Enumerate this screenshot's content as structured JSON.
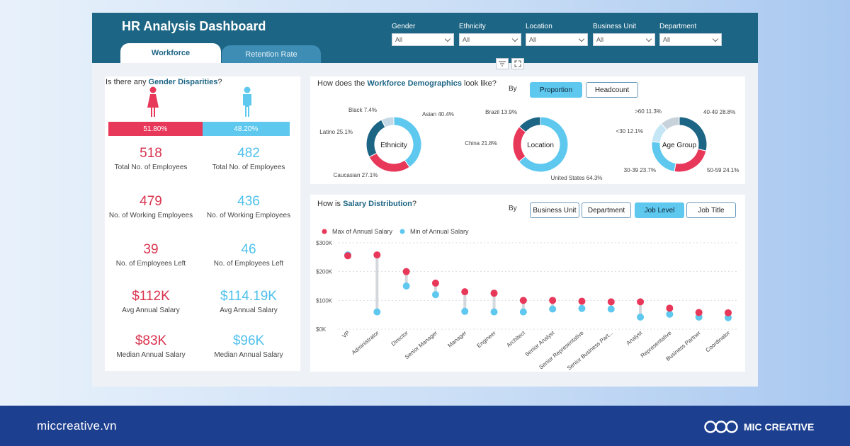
{
  "dashboard": {
    "title": "HR Analysis Dashboard",
    "tabs": [
      "Workforce",
      "Retention Rate"
    ],
    "filters": [
      {
        "label": "Gender",
        "value": "All"
      },
      {
        "label": "Ethnicity",
        "value": "All"
      },
      {
        "label": "Location",
        "value": "All"
      },
      {
        "label": "Business Unit",
        "value": "All"
      },
      {
        "label": "Department",
        "value": "All"
      }
    ]
  },
  "gender": {
    "question_prefix": "Is there any ",
    "question_bold": "Gender Disparities",
    "question_suffix": "?",
    "female_pct": "51.80%",
    "male_pct": "48.20%",
    "female_share": 51.8,
    "colors": {
      "female": "#e8385a",
      "male": "#5ec8ef"
    },
    "kpis": [
      {
        "female": "518",
        "male": "482",
        "label": "Total No. of Employees"
      },
      {
        "female": "479",
        "male": "436",
        "label": "No. of Working Employees"
      },
      {
        "female": "39",
        "male": "46",
        "label": "No. of Employees Left"
      },
      {
        "female": "$112K",
        "male": "$114.19K",
        "label": "Avg Annual Salary"
      },
      {
        "female": "$83K",
        "male": "$96K",
        "label": "Median Annual Salary"
      }
    ]
  },
  "demographics": {
    "question_prefix": "How does the ",
    "question_bold": "Workforce Demographics",
    "question_suffix": " look like?",
    "by_label": "By",
    "toggles": [
      "Proportion",
      "Headcount"
    ],
    "active_toggle": "Proportion",
    "donuts": [
      {
        "center": "Ethnicity",
        "segments": [
          {
            "label": "Asian 40.4%",
            "value": 40.4,
            "color": "#5ec8ef"
          },
          {
            "label": "Caucasian 27.1%",
            "value": 27.1,
            "color": "#e8385a"
          },
          {
            "label": "Latino 25.1%",
            "value": 25.1,
            "color": "#1d6584"
          },
          {
            "label": "Black 7.4%",
            "value": 7.4,
            "color": "#c5d9e6"
          }
        ]
      },
      {
        "center": "Location",
        "segments": [
          {
            "label": "United States 64.3%",
            "value": 64.3,
            "color": "#5ec8ef"
          },
          {
            "label": "China 21.8%",
            "value": 21.8,
            "color": "#e8385a"
          },
          {
            "label": "Brazil 13.9%",
            "value": 13.9,
            "color": "#1d6584"
          }
        ]
      },
      {
        "center": "Age Group",
        "segments": [
          {
            "label": "40-49 28.8%",
            "value": 28.8,
            "color": "#1d6584"
          },
          {
            "label": "50-59 24.1%",
            "value": 24.1,
            "color": "#e8385a"
          },
          {
            "label": "30-39 23.7%",
            "value": 23.7,
            "color": "#5ec8ef"
          },
          {
            "label": "<30 12.1%",
            "value": 12.1,
            "color": "#c5e6f4"
          },
          {
            "label": ">60 11.3%",
            "value": 11.3,
            "color": "#c8d2da"
          }
        ]
      }
    ]
  },
  "salary": {
    "question_prefix": "How is ",
    "question_bold": "Salary Distribution",
    "question_suffix": "?",
    "by_label": "By",
    "toggles": [
      "Business Unit",
      "Department",
      "Job Level",
      "Job Title"
    ],
    "active_toggle": "Job Level"
  },
  "chart_data": {
    "type": "scatter",
    "title": "Salary Distribution",
    "legend": [
      "Max of Annual Salary",
      "Min of Annual Salary"
    ],
    "y_ticks": [
      "$0K",
      "$100K",
      "$200K",
      "$300K"
    ],
    "ylim": [
      0,
      300
    ],
    "categories": [
      "VP",
      "Administrator",
      "Director",
      "Senior Manager",
      "Manager",
      "Engineer",
      "Architect",
      "Senior Analyst",
      "Senior Representative",
      "Senior Business Part...",
      "Analyst",
      "Representative",
      "Business Partner",
      "Coordinator"
    ],
    "series": [
      {
        "name": "Max of Annual Salary",
        "color": "#e8385a",
        "values": [
          255,
          258,
          200,
          160,
          130,
          125,
          100,
          100,
          97,
          95,
          95,
          73,
          58,
          57
        ]
      },
      {
        "name": "Min of Annual Salary",
        "color": "#5ec8ef",
        "values": [
          258,
          60,
          150,
          120,
          62,
          60,
          60,
          70,
          72,
          70,
          42,
          52,
          42,
          40
        ]
      }
    ]
  },
  "footer": {
    "site": "miccreative.vn",
    "brand": "MIC CREATIVE"
  }
}
